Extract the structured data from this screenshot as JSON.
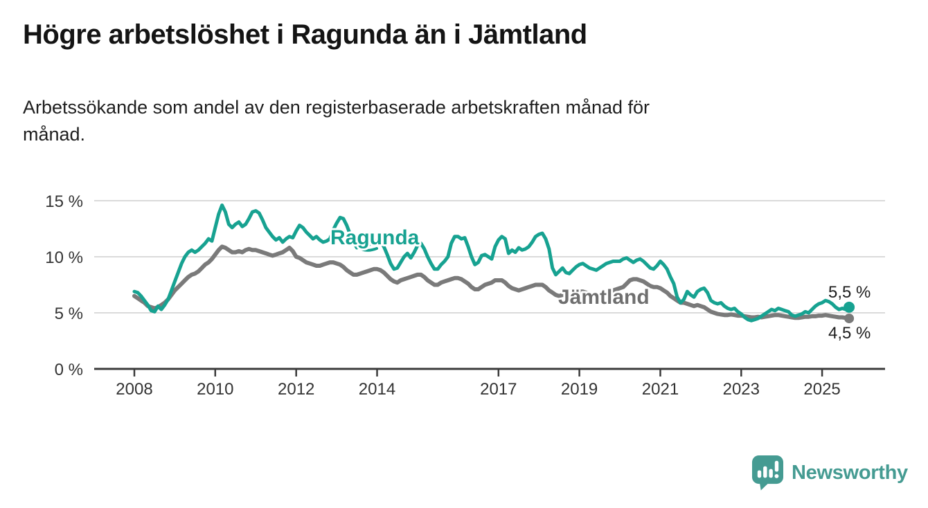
{
  "header": {
    "title": "Högre arbetslöshet i Ragunda än i Jämtland",
    "subtitle_lines": [
      "Arbetssökande som andel av den registerbaserade arbetskraften månad för",
      "månad."
    ]
  },
  "branding": {
    "logo_text": "Newsworthy",
    "logo_icon": "newsworthy-speech-bubble-chart-icon",
    "brand_color": "#459b92"
  },
  "colors": {
    "ragunda_line": "#17a291",
    "jamtland_line": "#7a7a7a",
    "jamtland_label": "#6f6f6f",
    "grid": "#dadada",
    "axis": "#3a3a3a",
    "tick_text": "#333333"
  },
  "chart_data": {
    "type": "line",
    "title": "Högre arbetslöshet i Ragunda än i Jämtland",
    "subtitle": "Arbetssökande som andel av den registerbaserade arbetskraften månad för månad.",
    "x_unit": "month",
    "x_range_start": "2008-01",
    "x_range_end": "2025-09",
    "ylim": [
      0,
      16
    ],
    "grid": "horizontal",
    "legend": "inline-labels",
    "y_ticks": [
      {
        "v": 0,
        "label": "0 %"
      },
      {
        "v": 5,
        "label": "5 %"
      },
      {
        "v": 10,
        "label": "10 %"
      },
      {
        "v": 15,
        "label": "15 %"
      }
    ],
    "x_ticks": [
      {
        "year": 2008,
        "label": "2008"
      },
      {
        "year": 2010,
        "label": "2010"
      },
      {
        "year": 2012,
        "label": "2012"
      },
      {
        "year": 2014,
        "label": "2014"
      },
      {
        "year": 2017,
        "label": "2017"
      },
      {
        "year": 2019,
        "label": "2019"
      },
      {
        "year": 2021,
        "label": "2021"
      },
      {
        "year": 2023,
        "label": "2023"
      },
      {
        "year": 2025,
        "label": "2025"
      }
    ],
    "series": [
      {
        "name": "Ragunda",
        "color": "#17a291",
        "end_label": "5,5 %",
        "end_value": 5.5,
        "values": [
          6.9,
          6.8,
          6.5,
          6.1,
          5.7,
          5.2,
          5.1,
          5.6,
          5.3,
          5.7,
          6.2,
          7.0,
          7.8,
          8.6,
          9.4,
          10.0,
          10.4,
          10.6,
          10.4,
          10.6,
          10.9,
          11.2,
          11.6,
          11.4,
          12.6,
          13.8,
          14.6,
          14.0,
          12.9,
          12.6,
          12.9,
          13.1,
          12.7,
          12.9,
          13.4,
          14.0,
          14.1,
          13.9,
          13.3,
          12.6,
          12.2,
          11.8,
          11.5,
          11.7,
          11.3,
          11.6,
          11.8,
          11.7,
          12.3,
          12.8,
          12.6,
          12.2,
          11.9,
          11.6,
          11.8,
          11.5,
          11.3,
          11.4,
          11.6,
          12.4,
          13.0,
          13.5,
          13.4,
          12.8,
          12.0,
          11.3,
          10.8,
          11.0,
          10.7,
          10.9,
          11.2,
          11.5,
          11.4,
          11.3,
          10.9,
          10.2,
          9.4,
          8.9,
          9.0,
          9.5,
          10.0,
          10.3,
          9.9,
          10.4,
          11.0,
          11.2,
          10.7,
          10.0,
          9.4,
          8.9,
          8.9,
          9.3,
          9.6,
          10.0,
          11.2,
          11.8,
          11.8,
          11.6,
          11.7,
          10.9,
          10.0,
          9.3,
          9.5,
          10.1,
          10.2,
          10.0,
          9.8,
          10.9,
          11.5,
          11.8,
          11.6,
          10.3,
          10.6,
          10.4,
          10.8,
          10.6,
          10.7,
          10.9,
          11.3,
          11.8,
          12.0,
          12.1,
          11.6,
          10.7,
          9.0,
          8.4,
          8.7,
          9.0,
          8.6,
          8.5,
          8.8,
          9.1,
          9.3,
          9.4,
          9.2,
          9.0,
          8.9,
          8.8,
          9.0,
          9.2,
          9.4,
          9.5,
          9.6,
          9.6,
          9.6,
          9.8,
          9.9,
          9.7,
          9.5,
          9.7,
          9.8,
          9.6,
          9.3,
          9.0,
          8.9,
          9.2,
          9.6,
          9.3,
          8.9,
          8.2,
          7.6,
          6.4,
          5.9,
          6.2,
          6.9,
          6.6,
          6.4,
          6.9,
          7.1,
          7.2,
          6.8,
          6.1,
          5.9,
          5.8,
          5.9,
          5.6,
          5.4,
          5.3,
          5.4,
          5.1,
          4.9,
          4.6,
          4.4,
          4.3,
          4.4,
          4.5,
          4.7,
          4.9,
          5.1,
          5.3,
          5.2,
          5.4,
          5.3,
          5.2,
          5.1,
          4.8,
          4.7,
          4.8,
          4.9,
          5.1,
          5.0,
          5.3,
          5.6,
          5.8,
          5.9,
          6.1,
          6.0,
          5.8,
          5.5,
          5.3,
          5.4,
          5.3,
          5.5
        ]
      },
      {
        "name": "Jämtland",
        "color": "#7a7a7a",
        "end_label": "4,5 %",
        "end_value": 4.5,
        "values": [
          6.5,
          6.3,
          6.1,
          5.9,
          5.6,
          5.5,
          5.4,
          5.5,
          5.7,
          5.9,
          6.2,
          6.6,
          7.0,
          7.3,
          7.6,
          7.9,
          8.2,
          8.4,
          8.5,
          8.7,
          9.0,
          9.3,
          9.5,
          9.8,
          10.2,
          10.6,
          10.9,
          10.8,
          10.6,
          10.4,
          10.4,
          10.5,
          10.4,
          10.6,
          10.7,
          10.6,
          10.6,
          10.5,
          10.4,
          10.3,
          10.2,
          10.1,
          10.2,
          10.3,
          10.4,
          10.6,
          10.8,
          10.5,
          10.0,
          9.9,
          9.7,
          9.5,
          9.4,
          9.3,
          9.2,
          9.2,
          9.3,
          9.4,
          9.5,
          9.5,
          9.4,
          9.3,
          9.1,
          8.8,
          8.6,
          8.4,
          8.4,
          8.5,
          8.6,
          8.7,
          8.8,
          8.9,
          8.9,
          8.8,
          8.6,
          8.3,
          8.0,
          7.8,
          7.7,
          7.9,
          8.0,
          8.1,
          8.2,
          8.3,
          8.4,
          8.4,
          8.2,
          7.9,
          7.7,
          7.5,
          7.5,
          7.7,
          7.8,
          7.9,
          8.0,
          8.1,
          8.1,
          8.0,
          7.8,
          7.6,
          7.3,
          7.1,
          7.1,
          7.3,
          7.5,
          7.6,
          7.7,
          7.9,
          7.9,
          7.9,
          7.7,
          7.4,
          7.2,
          7.1,
          7.0,
          7.1,
          7.2,
          7.3,
          7.4,
          7.5,
          7.5,
          7.5,
          7.3,
          7.0,
          6.8,
          6.6,
          6.5,
          6.6,
          6.6,
          6.6,
          6.7,
          6.8,
          6.9,
          6.9,
          6.8,
          6.7,
          6.6,
          6.6,
          6.7,
          6.8,
          6.8,
          6.9,
          7.0,
          7.1,
          7.2,
          7.3,
          7.6,
          7.9,
          8.0,
          8.0,
          7.9,
          7.8,
          7.6,
          7.4,
          7.3,
          7.3,
          7.2,
          7.0,
          6.8,
          6.5,
          6.3,
          6.1,
          5.9,
          5.9,
          5.8,
          5.7,
          5.6,
          5.7,
          5.6,
          5.5,
          5.3,
          5.1,
          5.0,
          4.9,
          4.85,
          4.8,
          4.8,
          4.85,
          4.8,
          4.75,
          4.75,
          4.7,
          4.65,
          4.6,
          4.6,
          4.65,
          4.6,
          4.65,
          4.7,
          4.75,
          4.8,
          4.8,
          4.75,
          4.7,
          4.65,
          4.6,
          4.55,
          4.55,
          4.6,
          4.65,
          4.65,
          4.7,
          4.7,
          4.75,
          4.75,
          4.8,
          4.75,
          4.7,
          4.65,
          4.6,
          4.6,
          4.55,
          4.5
        ]
      }
    ]
  }
}
